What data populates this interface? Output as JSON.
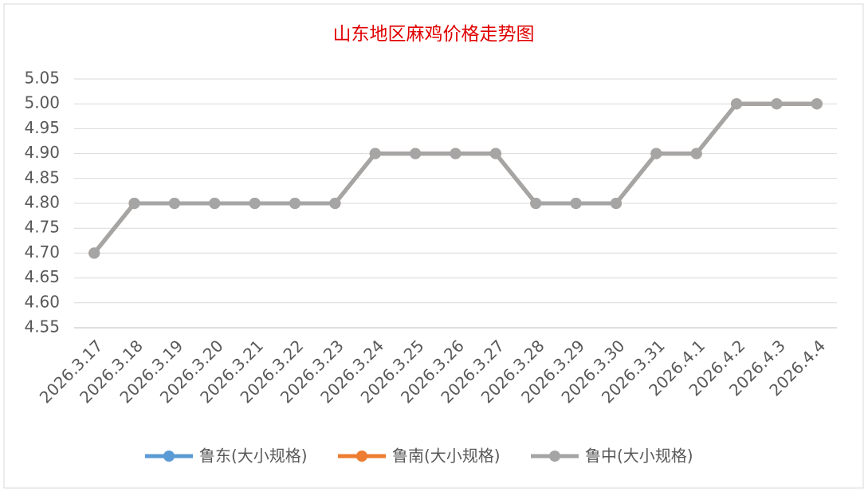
{
  "chart_data": {
    "type": "line",
    "title": "山东地区麻鸡价格走势图",
    "categories": [
      "2026.3.17",
      "2026.3.18",
      "2026.3.19",
      "2026.3.20",
      "2026.3.21",
      "2026.3.22",
      "2026.3.23",
      "2026.3.24",
      "2026.3.25",
      "2026.3.26",
      "2026.3.27",
      "2026.3.28",
      "2026.3.29",
      "2026.3.30",
      "2026.3.31",
      "2026.4.1",
      "2026.4.2",
      "2026.4.3",
      "2026.4.4"
    ],
    "series": [
      {
        "name": "鲁东(大小规格)",
        "color": "#5b9bd5",
        "values": [
          4.7,
          4.8,
          4.8,
          4.8,
          4.8,
          4.8,
          4.8,
          4.9,
          4.9,
          4.9,
          4.9,
          4.8,
          4.8,
          4.8,
          4.9,
          4.9,
          5.0,
          5.0,
          5.0
        ]
      },
      {
        "name": "鲁南(大小规格)",
        "color": "#ed7d31",
        "values": [
          4.7,
          4.8,
          4.8,
          4.8,
          4.8,
          4.8,
          4.8,
          4.9,
          4.9,
          4.9,
          4.9,
          4.8,
          4.8,
          4.8,
          4.9,
          4.9,
          5.0,
          5.0,
          5.0
        ]
      },
      {
        "name": "鲁中(大小规格)",
        "color": "#a5a5a5",
        "values": [
          4.7,
          4.8,
          4.8,
          4.8,
          4.8,
          4.8,
          4.8,
          4.9,
          4.9,
          4.9,
          4.9,
          4.8,
          4.8,
          4.8,
          4.9,
          4.9,
          5.0,
          5.0,
          5.0
        ]
      }
    ],
    "ylim": [
      4.55,
      5.05
    ],
    "yticks": [
      4.55,
      {
        "value": 4.6,
        "label": "4.60"
      },
      4.65,
      {
        "value": 4.7,
        "label": "4.70"
      },
      4.75,
      {
        "value": 4.8,
        "label": "4.80"
      },
      4.85,
      {
        "value": 4.9,
        "label": "4.90"
      },
      4.95,
      {
        "value": 5.0,
        "label": "5.00"
      },
      5.05
    ],
    "grid": true,
    "legend": "bottom"
  }
}
